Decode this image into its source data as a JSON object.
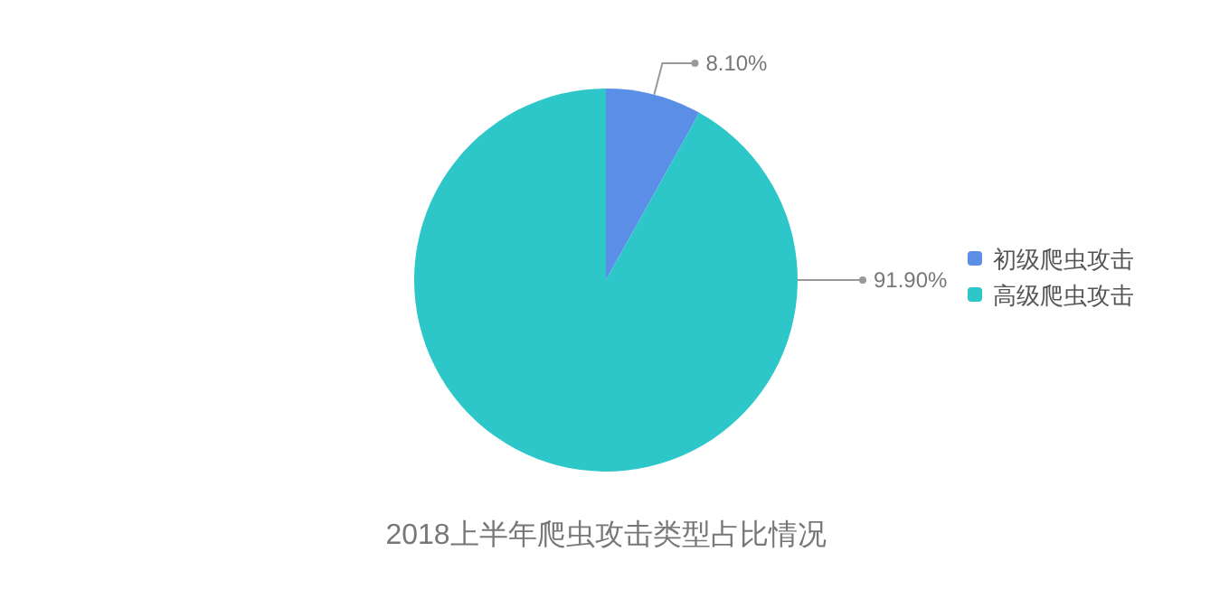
{
  "chart_data": {
    "type": "pie",
    "title": "2018上半年爬虫攻击类型占比情况",
    "categories": [
      "初级爬虫攻击",
      "高级爬虫攻击"
    ],
    "values": [
      8.1,
      91.9
    ],
    "colors": [
      "#5b8ee6",
      "#2ec7c9"
    ],
    "value_labels": [
      "8.10%",
      "91.90%"
    ],
    "legend": "right"
  }
}
